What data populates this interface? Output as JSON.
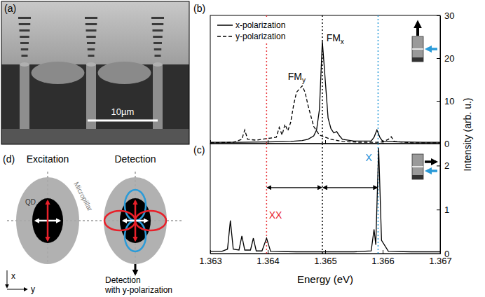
{
  "panel_a": {
    "label": "(a)",
    "scale_bar": "10µm"
  },
  "panel_d": {
    "label": "(d)",
    "excitation": "Excitation",
    "detection": "Detection",
    "micropillar": "Micropillar",
    "qd": "QD",
    "axis_x": "x",
    "axis_y": "y",
    "detection_note": [
      "Detection",
      "with y-polarization"
    ]
  },
  "chart_data": [
    {
      "type": "line",
      "label": "(b)",
      "xlim": [
        1.363,
        1.367
      ],
      "xticks": [
        1.363,
        1.364,
        1.365,
        1.366,
        1.367
      ],
      "ylim": [
        0,
        30
      ],
      "yticks": [
        0,
        10,
        20,
        30
      ],
      "tick_labels": "y",
      "y_label": "Intensity (arb. u.)",
      "legend": "upper left",
      "series": [
        {
          "name": "x-polarization",
          "color": "#000000",
          "line_style": "solid",
          "x": [
            1.363,
            1.3635,
            1.364,
            1.3644,
            1.3646,
            1.3647,
            1.3648,
            1.36485,
            1.3649,
            1.36495,
            1.365,
            1.36505,
            1.3651,
            1.36515,
            1.3652,
            1.36525,
            1.3653,
            1.3655,
            1.3658,
            1.36585,
            1.3659,
            1.36595,
            1.366,
            1.3663,
            1.3667,
            1.367
          ],
          "values": [
            0.3,
            0.3,
            0.4,
            0.5,
            0.7,
            1.0,
            1.8,
            3.2,
            8,
            24,
            15,
            6,
            3.5,
            2.5,
            2.8,
            1.8,
            1.0,
            0.6,
            0.6,
            1.5,
            3.2,
            1.5,
            0.5,
            0.4,
            0.3,
            0.3
          ]
        },
        {
          "name": "y-polarization",
          "color": "#000000",
          "line_style": "dashed",
          "x": [
            1.363,
            1.3634,
            1.36355,
            1.3636,
            1.36365,
            1.3638,
            1.36415,
            1.3642,
            1.36425,
            1.3643,
            1.36435,
            1.3644,
            1.36445,
            1.3645,
            1.3646,
            1.36465,
            1.3647,
            1.3648,
            1.3649,
            1.3651,
            1.3653,
            1.3656,
            1.3659,
            1.366,
            1.3661,
            1.36615,
            1.3662,
            1.3665,
            1.367
          ],
          "values": [
            0.2,
            0.3,
            1.0,
            3.2,
            1.0,
            0.8,
            1.5,
            3.8,
            2.0,
            4.5,
            3.0,
            5,
            9,
            12,
            13.5,
            12,
            9,
            4,
            2,
            1,
            0.5,
            0.3,
            0.3,
            0.4,
            1.0,
            1.6,
            0.5,
            0.2,
            0.2
          ]
        }
      ],
      "vlines": [
        {
          "x": 1.36398,
          "color": "#e8383d"
        },
        {
          "x": 1.36495,
          "color": "#000000"
        },
        {
          "x": 1.36592,
          "color": "#2b9bd8"
        }
      ],
      "annotations": [
        {
          "text": "FM",
          "sub": "x",
          "x": 1.36502,
          "y": 24,
          "color": "#000000"
        },
        {
          "text": "FM",
          "sub": "y",
          "x": 1.36435,
          "y": 15,
          "color": "#000000"
        }
      ]
    },
    {
      "type": "line",
      "label": "(c)",
      "xlim": [
        1.363,
        1.367
      ],
      "xticks": [
        1.363,
        1.364,
        1.365,
        1.366,
        1.367
      ],
      "ylim": [
        0,
        2.5
      ],
      "yticks": [
        0,
        1,
        2
      ],
      "x_label": "Energy (eV)",
      "series": [
        {
          "color": "#000000",
          "line_style": "solid",
          "x": [
            1.363,
            1.3632,
            1.3633,
            1.36335,
            1.3634,
            1.3635,
            1.36355,
            1.3636,
            1.3637,
            1.36375,
            1.3638,
            1.3639,
            1.36398,
            1.36405,
            1.3645,
            1.365,
            1.3655,
            1.3658,
            1.36585,
            1.36588,
            1.36593,
            1.36598,
            1.3661,
            1.3665,
            1.367
          ],
          "values": [
            0.05,
            0.05,
            0.1,
            0.75,
            0.1,
            0.08,
            0.4,
            0.08,
            0.08,
            0.35,
            0.06,
            0.06,
            0.35,
            0.05,
            0.04,
            0.04,
            0.04,
            0.06,
            0.55,
            0.2,
            2.4,
            0.3,
            0.05,
            0.04,
            0.04
          ]
        }
      ],
      "vlines": [
        {
          "x": 1.36398,
          "color": "#e8383d"
        },
        {
          "x": 1.36495,
          "color": "#000000"
        },
        {
          "x": 1.36592,
          "color": "#2b9bd8"
        }
      ],
      "annotations": [
        {
          "text": "XX",
          "x": 1.36402,
          "y": 0.8,
          "color": "#e8202a"
        },
        {
          "text": "X",
          "x": 1.3657,
          "y": 2.1,
          "color": "#1a8fd8"
        }
      ],
      "arrows": [
        {
          "from": 1.36398,
          "to": 1.36495,
          "y": 1.5
        },
        {
          "from": 1.36495,
          "to": 1.36592,
          "y": 1.5
        }
      ]
    }
  ]
}
